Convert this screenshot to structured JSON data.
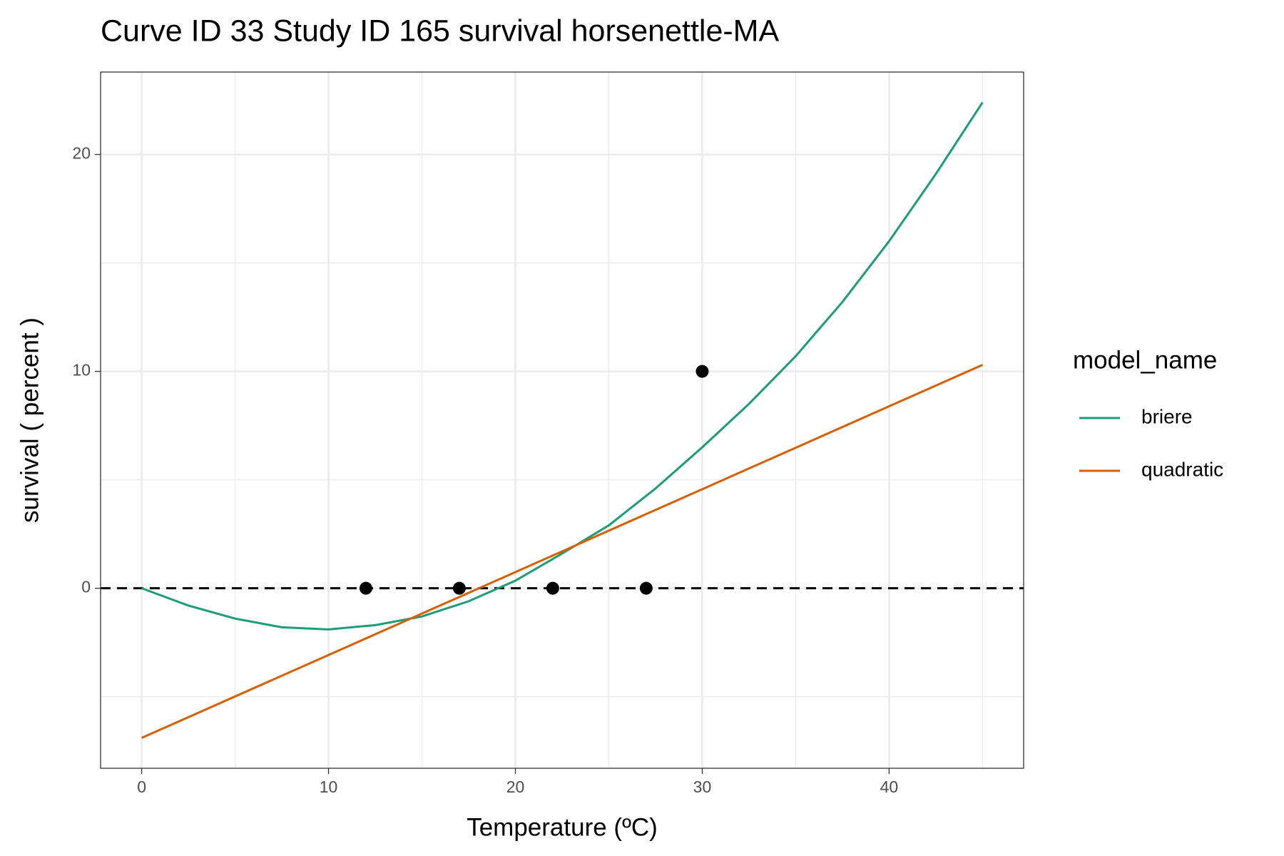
{
  "chart_data": {
    "type": "line",
    "title": "Curve ID 33 Study ID 165 survival horsenettle-MA",
    "x_label": "Temperature (ºC)",
    "y_label": "survival ( percent )",
    "legend_title": "model_name",
    "legend": "right",
    "grid": true,
    "xlim": [
      -2.2,
      47.2
    ],
    "xticks": [
      0,
      10,
      20,
      30,
      40
    ],
    "xminor": [
      5,
      15,
      25,
      35,
      45
    ],
    "ylim": [
      -8.3,
      23.8
    ],
    "yticks": [
      0,
      10,
      20
    ],
    "yminor": [
      -5,
      5,
      15
    ],
    "hline": 0,
    "series": [
      {
        "name": "briere",
        "color": "#1b9e77",
        "x": [
          0,
          2.5,
          5,
          7.5,
          10,
          12.5,
          15,
          17.5,
          20,
          22.5,
          25,
          27.5,
          30,
          32.5,
          35,
          37.5,
          40,
          42.5,
          45
        ],
        "values": [
          0,
          -0.8,
          -1.4,
          -1.8,
          -1.9,
          -1.7,
          -1.3,
          -0.6,
          0.35,
          1.6,
          2.9,
          4.6,
          6.5,
          8.5,
          10.7,
          13.2,
          16,
          19.1,
          22.4
        ]
      },
      {
        "name": "quadratic",
        "color": "#d95f02",
        "x": [
          0,
          45
        ],
        "values": [
          -6.9,
          10.3
        ]
      }
    ],
    "points": {
      "color": "#000000",
      "x": [
        12,
        17,
        22,
        27,
        30
      ],
      "values": [
        0,
        0,
        0,
        0,
        10
      ]
    }
  }
}
